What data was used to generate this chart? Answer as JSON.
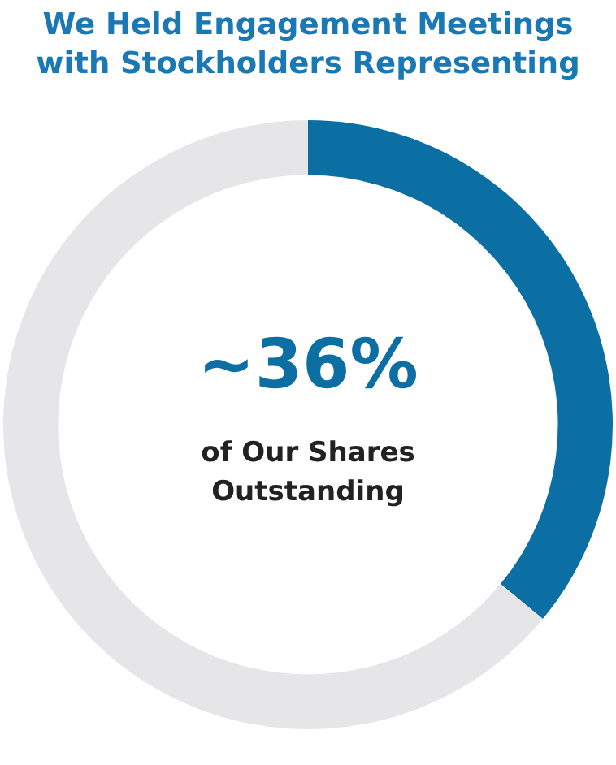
{
  "chart_data": {
    "type": "donut",
    "title": "We Held Engagement Meetings with Stockholders Representing",
    "categories": [
      null,
      null
    ],
    "values": [
      36,
      64
    ],
    "colors": [
      "#0b6fa4",
      "#e6e6e8"
    ],
    "annotations": [
      "~36%",
      "of Our Shares Outstanding"
    ],
    "legend": false
  }
}
